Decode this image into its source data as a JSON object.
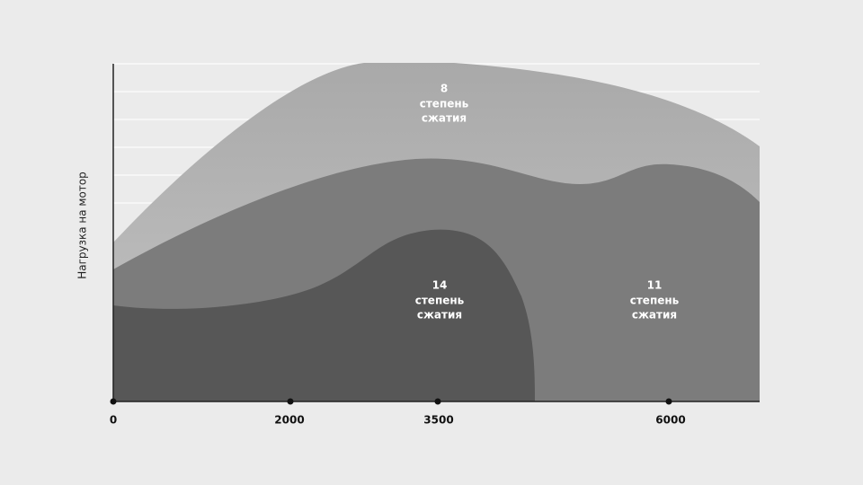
{
  "y_axis_label": "Нагрузка на мотор",
  "x_ticks": [
    0,
    2000,
    3500,
    6000
  ],
  "regions": [
    {
      "lines": [
        "8",
        "степень",
        "сжатия"
      ]
    },
    {
      "lines": [
        "14",
        "степень",
        "сжатия"
      ]
    },
    {
      "lines": [
        "11",
        "степень",
        "сжатия"
      ]
    }
  ]
}
